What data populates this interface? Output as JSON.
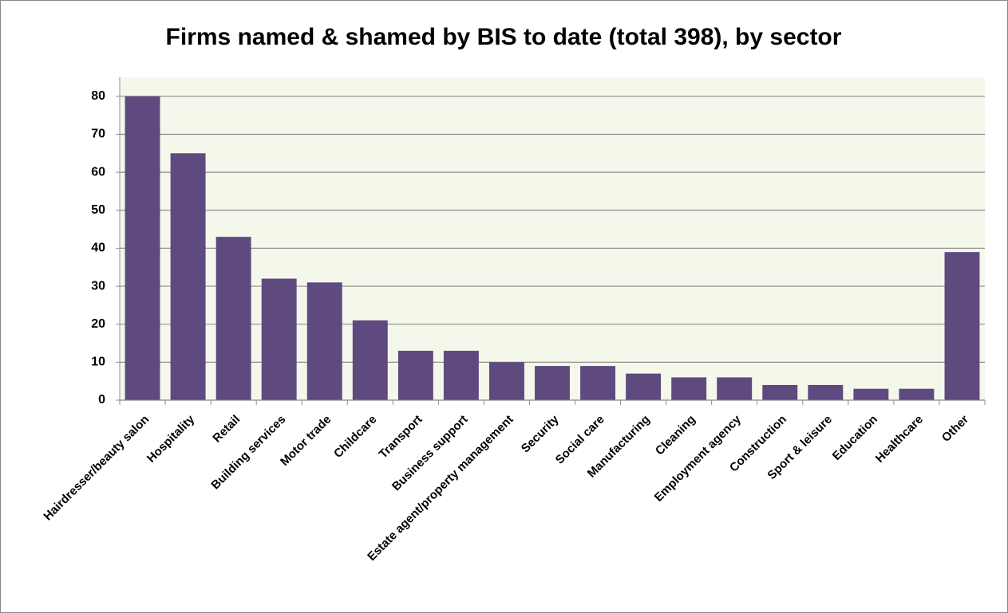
{
  "chart_data": {
    "type": "bar",
    "title": "Firms named & shamed by BIS to date (total 398), by sector",
    "categories": [
      "Hairdresser/beauty salon",
      "Hospitality",
      "Retail",
      "Building services",
      "Motor trade",
      "Childcare",
      "Transport",
      "Business support",
      "Estate agent/property management",
      "Security",
      "Social care",
      "Manufacturing",
      "Cleaning",
      "Employment agency",
      "Construction",
      "Sport & leisure",
      "Education",
      "Healthcare",
      "Other"
    ],
    "values": [
      80,
      65,
      43,
      32,
      31,
      21,
      13,
      13,
      10,
      9,
      9,
      7,
      6,
      6,
      4,
      4,
      3,
      3,
      39
    ],
    "color": "#5e4a7e",
    "ylim": [
      0,
      85
    ],
    "yticks": [
      0,
      10,
      20,
      30,
      40,
      50,
      60,
      70,
      80
    ],
    "grid": true
  }
}
